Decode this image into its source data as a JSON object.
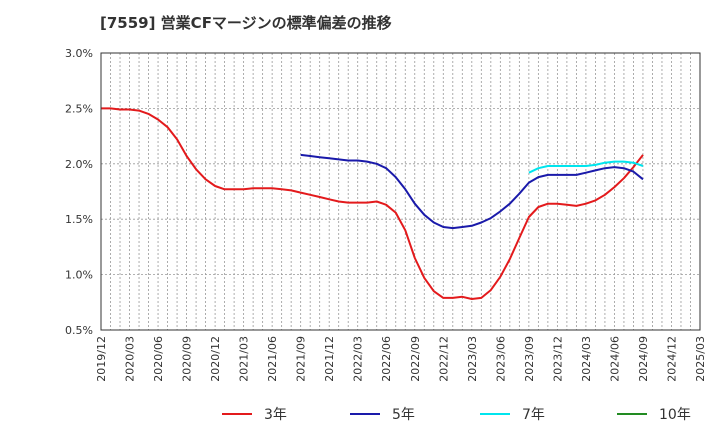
{
  "title": "[7559]  営業CFマージンの標準偏差の推移",
  "chart_data": {
    "type": "line",
    "title": "[7559]  営業CFマージンの標準偏差の推移",
    "xlabel": "",
    "ylabel": "",
    "x_tick_labels": [
      "2019/12",
      "2020/03",
      "2020/06",
      "2020/09",
      "2020/12",
      "2021/03",
      "2021/06",
      "2021/09",
      "2021/12",
      "2022/03",
      "2022/06",
      "2022/09",
      "2022/12",
      "2023/03",
      "2023/06",
      "2023/09",
      "2023/12",
      "2024/03",
      "2024/06",
      "2024/09",
      "2024/12",
      "2025/03"
    ],
    "y_tick_labels": [
      "0.5%",
      "1.0%",
      "1.5%",
      "2.0%",
      "2.5%",
      "3.0%"
    ],
    "ylim": [
      0.5,
      3.0
    ],
    "xlim": [
      "2019/12",
      "2025/03"
    ],
    "grid": true,
    "legend_position": "bottom",
    "series": [
      {
        "name": "3年",
        "color": "#e31a1c",
        "x": [
          "2019/12",
          "2020/01",
          "2020/02",
          "2020/03",
          "2020/04",
          "2020/05",
          "2020/06",
          "2020/07",
          "2020/08",
          "2020/09",
          "2020/10",
          "2020/11",
          "2020/12",
          "2021/01",
          "2021/02",
          "2021/03",
          "2021/04",
          "2021/05",
          "2021/06",
          "2021/07",
          "2021/08",
          "2021/09",
          "2021/10",
          "2021/11",
          "2021/12",
          "2022/01",
          "2022/02",
          "2022/03",
          "2022/04",
          "2022/05",
          "2022/06",
          "2022/07",
          "2022/08",
          "2022/09",
          "2022/10",
          "2022/11",
          "2022/12",
          "2023/01",
          "2023/02",
          "2023/03",
          "2023/04",
          "2023/05",
          "2023/06",
          "2023/07",
          "2023/08",
          "2023/09",
          "2023/10",
          "2023/11",
          "2023/12",
          "2024/01",
          "2024/02",
          "2024/03",
          "2024/04",
          "2024/05",
          "2024/06",
          "2024/07",
          "2024/08",
          "2024/09"
        ],
        "values": [
          2.5,
          2.5,
          2.49,
          2.49,
          2.48,
          2.45,
          2.4,
          2.33,
          2.22,
          2.07,
          1.95,
          1.86,
          1.8,
          1.77,
          1.77,
          1.77,
          1.78,
          1.78,
          1.78,
          1.77,
          1.76,
          1.74,
          1.72,
          1.7,
          1.68,
          1.66,
          1.65,
          1.65,
          1.65,
          1.66,
          1.63,
          1.56,
          1.4,
          1.15,
          0.97,
          0.85,
          0.79,
          0.79,
          0.8,
          0.78,
          0.79,
          0.86,
          0.98,
          1.14,
          1.33,
          1.52,
          1.61,
          1.64,
          1.64,
          1.63,
          1.62,
          1.64,
          1.67,
          1.72,
          1.79,
          1.87,
          1.97,
          2.08
        ]
      },
      {
        "name": "5年",
        "color": "#1a1aaa",
        "x": [
          "2021/09",
          "2021/10",
          "2021/11",
          "2021/12",
          "2022/01",
          "2022/02",
          "2022/03",
          "2022/04",
          "2022/05",
          "2022/06",
          "2022/07",
          "2022/08",
          "2022/09",
          "2022/10",
          "2022/11",
          "2022/12",
          "2023/01",
          "2023/02",
          "2023/03",
          "2023/04",
          "2023/05",
          "2023/06",
          "2023/07",
          "2023/08",
          "2023/09",
          "2023/10",
          "2023/11",
          "2023/12",
          "2024/01",
          "2024/02",
          "2024/03",
          "2024/04",
          "2024/05",
          "2024/06",
          "2024/07",
          "2024/08",
          "2024/09"
        ],
        "values": [
          2.08,
          2.07,
          2.06,
          2.05,
          2.04,
          2.03,
          2.03,
          2.02,
          2.0,
          1.96,
          1.88,
          1.77,
          1.64,
          1.54,
          1.47,
          1.43,
          1.42,
          1.43,
          1.44,
          1.47,
          1.51,
          1.57,
          1.64,
          1.73,
          1.83,
          1.88,
          1.9,
          1.9,
          1.9,
          1.9,
          1.92,
          1.94,
          1.96,
          1.97,
          1.96,
          1.93,
          1.86
        ]
      },
      {
        "name": "7年",
        "color": "#00e5ee",
        "x": [
          "2023/09",
          "2023/10",
          "2023/11",
          "2023/12",
          "2024/01",
          "2024/02",
          "2024/03",
          "2024/04",
          "2024/05",
          "2024/06",
          "2024/07",
          "2024/08",
          "2024/09"
        ],
        "values": [
          1.92,
          1.96,
          1.98,
          1.98,
          1.98,
          1.98,
          1.98,
          1.99,
          2.01,
          2.02,
          2.02,
          2.01,
          1.98
        ]
      },
      {
        "name": "10年",
        "color": "#228b22",
        "x": [],
        "values": []
      }
    ]
  }
}
